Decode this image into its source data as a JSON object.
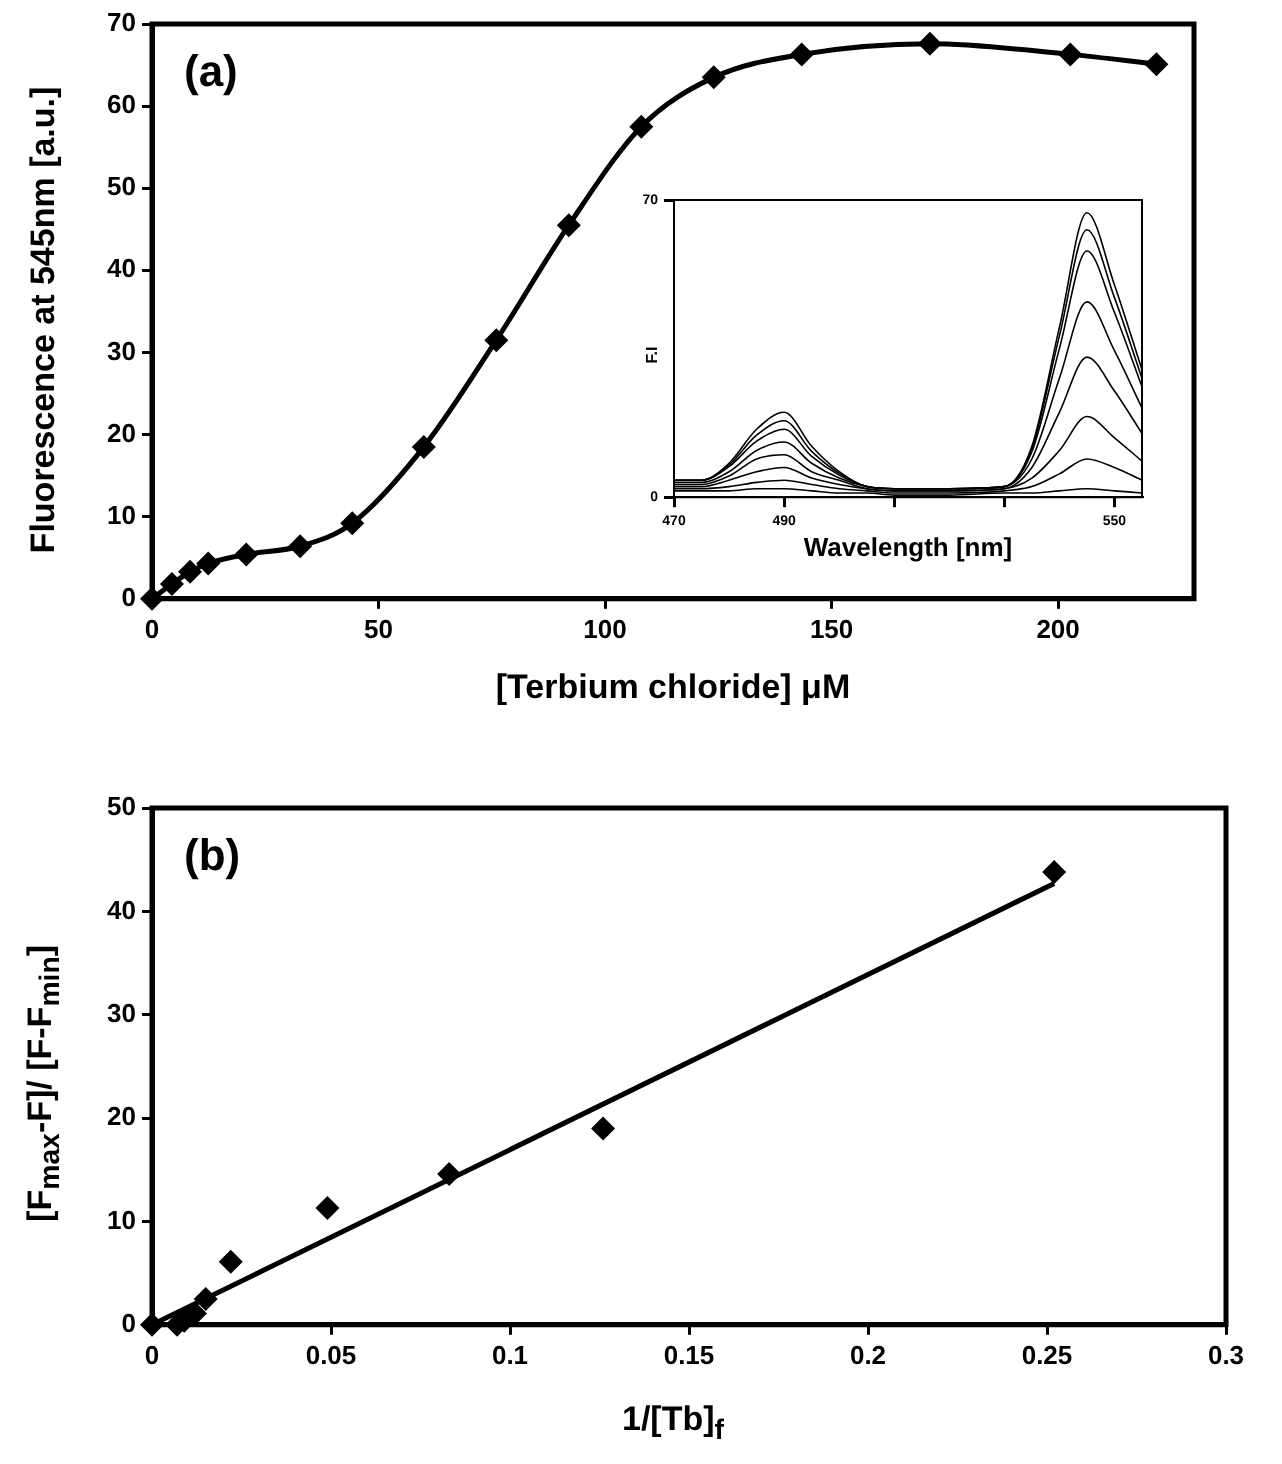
{
  "chart_data": [
    {
      "type": "line",
      "xlabel": "[Terbium chloride] μM",
      "ylabel": "Fluorescence at  545nm  [a.u.]",
      "annotations": [
        "(a)"
      ],
      "marker": "diamond",
      "grid": false,
      "legend": false,
      "x": [
        0,
        4.4,
        8.4,
        12.4,
        20.8,
        32.7,
        44.2,
        60,
        76,
        92,
        108,
        124,
        143.4,
        171.7,
        202.7,
        221.7
      ],
      "series": [
        {
          "color": "#000000",
          "values": [
            0,
            1.8,
            3.3,
            4.3,
            5.4,
            6.4,
            9.2,
            18.5,
            31.5,
            45.5,
            57.5,
            63.5,
            66.3,
            67.6,
            66.3,
            65.1
          ]
        }
      ],
      "xlim": [
        0,
        230
      ],
      "xticks": [
        0,
        50,
        100,
        150,
        200
      ],
      "ylim": [
        0,
        70
      ],
      "yticks": [
        0,
        10,
        20,
        30,
        40,
        50,
        60,
        70
      ]
    },
    {
      "type": "line",
      "xlabel": "Wavelength [nm]",
      "ylabel": "F.I",
      "marker": "none",
      "grid": false,
      "legend": false,
      "x": [
        470,
        475,
        480,
        485,
        490,
        495,
        500,
        505,
        510,
        520,
        530,
        535,
        540,
        545,
        550,
        555
      ],
      "series": [
        {
          "color": "#000000",
          "values": [
            4,
            4,
            8,
            16,
            20,
            12,
            6,
            2.5,
            2,
            2,
            2.5,
            12,
            40,
            67,
            50,
            30
          ]
        },
        {
          "color": "#000000",
          "values": [
            4,
            4,
            7.6,
            14.6,
            18,
            10.8,
            5.6,
            2.5,
            2,
            2,
            2.5,
            11.5,
            38,
            63,
            47,
            28
          ]
        },
        {
          "color": "#000000",
          "values": [
            4,
            4,
            7.2,
            13.2,
            16,
            9.6,
            5.2,
            2.5,
            2,
            2,
            2.5,
            10.7,
            35,
            58,
            43.5,
            26
          ]
        },
        {
          "color": "#000000",
          "values": [
            3.5,
            3.5,
            6,
            11,
            13,
            8,
            4.5,
            2.5,
            2,
            2,
            2.5,
            9,
            28,
            46,
            34.5,
            21
          ]
        },
        {
          "color": "#000000",
          "values": [
            3,
            3,
            5,
            9,
            10,
            6,
            4,
            2,
            1.5,
            1.5,
            2,
            7,
            20,
            33,
            25,
            15
          ]
        },
        {
          "color": "#000000",
          "values": [
            2.5,
            2.5,
            4,
            6,
            7,
            4.5,
            3,
            2,
            1.5,
            1.5,
            2,
            4.5,
            11,
            19,
            14,
            8.5
          ]
        },
        {
          "color": "#000000",
          "values": [
            2,
            2,
            2.5,
            3.5,
            4,
            3,
            2,
            1.5,
            1,
            1,
            1.5,
            2.5,
            5.5,
            9,
            7,
            4
          ]
        },
        {
          "color": "#000000",
          "values": [
            1.5,
            1.5,
            1.5,
            2,
            2,
            1.5,
            1,
            1,
            0.5,
            0.5,
            1,
            1,
            1.5,
            2,
            1.5,
            1
          ]
        }
      ],
      "xlim": [
        470,
        555
      ],
      "xticks": [
        470,
        490,
        {
          "value": 510,
          "label": null
        },
        {
          "value": 530,
          "label": null
        },
        550
      ],
      "ylim": [
        0,
        70
      ],
      "yticks": [
        0,
        70
      ]
    },
    {
      "type": "scatter",
      "xlabel": "1/[Tb]$_{f}$",
      "ylabel": "[F$_{max}$-F]/ [F-F$_{min}$]",
      "annotations": [
        "(b)"
      ],
      "marker": "diamond",
      "grid": false,
      "legend": false,
      "series": [
        {
          "color": "#000000",
          "x": [
            0,
            0.007,
            0.009,
            0.012,
            0.015,
            0.022,
            0.049,
            0.083,
            0.126,
            0.252
          ],
          "values": [
            0,
            0,
            0.4,
            1.1,
            2.5,
            6.1,
            11.3,
            14.6,
            19,
            43.8
          ]
        },
        {
          "type": "line",
          "marker": "none",
          "color": "#000000",
          "x": [
            0,
            0.252
          ],
          "values": [
            0,
            42.7
          ]
        }
      ],
      "xlim": [
        0,
        0.3
      ],
      "xticks": [
        0,
        0.05,
        0.1,
        0.15,
        0.2,
        0.25,
        0.3
      ],
      "ylim": [
        0,
        50
      ],
      "yticks": [
        0,
        10,
        20,
        30,
        40,
        50
      ]
    }
  ]
}
